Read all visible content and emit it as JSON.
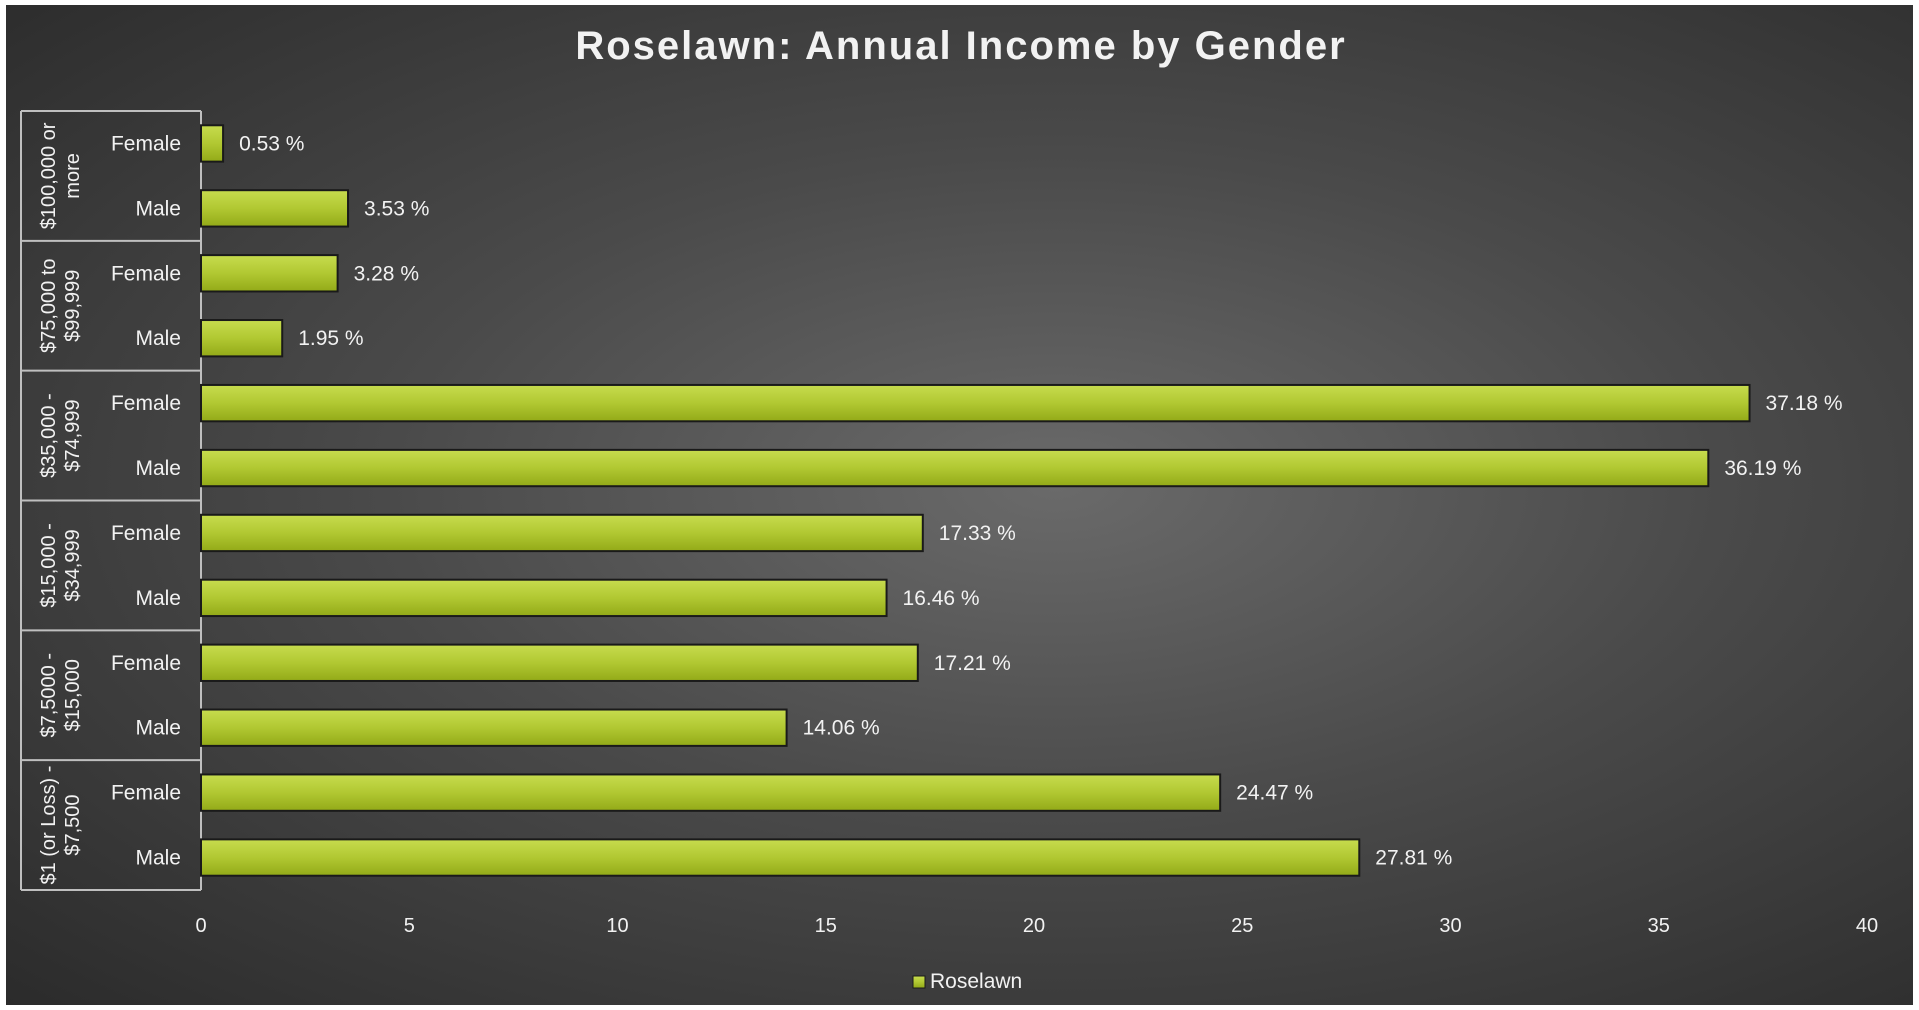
{
  "chart_data": {
    "type": "bar",
    "orientation": "horizontal",
    "title": "Roselawn: Annual Income by Gender",
    "groups": [
      {
        "label": "$100,000 or more",
        "lines": [
          "$100,000 or",
          "more"
        ],
        "bars": [
          {
            "category": "Female",
            "value": 0.53,
            "label": "0.53 %"
          },
          {
            "category": "Male",
            "value": 3.53,
            "label": "3.53 %"
          }
        ]
      },
      {
        "label": "$75,000 to $99,999",
        "lines": [
          "$75,000 to",
          "$99,999"
        ],
        "bars": [
          {
            "category": "Female",
            "value": 3.28,
            "label": "3.28 %"
          },
          {
            "category": "Male",
            "value": 1.95,
            "label": "1.95 %"
          }
        ]
      },
      {
        "label": "$35,000 - $74,999",
        "lines": [
          "$35,000 -",
          "$74,999"
        ],
        "bars": [
          {
            "category": "Female",
            "value": 37.18,
            "label": "37.18 %"
          },
          {
            "category": "Male",
            "value": 36.19,
            "label": "36.19 %"
          }
        ]
      },
      {
        "label": "$15,000 - $34,999",
        "lines": [
          "$15,000 -",
          "$34,999"
        ],
        "bars": [
          {
            "category": "Female",
            "value": 17.33,
            "label": "17.33 %"
          },
          {
            "category": "Male",
            "value": 16.46,
            "label": "16.46 %"
          }
        ]
      },
      {
        "label": "$7,5000 - $15,000",
        "lines": [
          "$7,5000 -",
          "$15,000"
        ],
        "bars": [
          {
            "category": "Female",
            "value": 17.21,
            "label": "17.21 %"
          },
          {
            "category": "Male",
            "value": 14.06,
            "label": "14.06 %"
          }
        ]
      },
      {
        "label": "$1 (or Loss) - $7,500",
        "lines": [
          "$1 (or Loss) -",
          "$7,500"
        ],
        "bars": [
          {
            "category": "Female",
            "value": 24.47,
            "label": "24.47 %"
          },
          {
            "category": "Male",
            "value": 27.81,
            "label": "27.81 %"
          }
        ]
      }
    ],
    "series": [
      {
        "name": "Roselawn"
      }
    ],
    "xlim": [
      0,
      40
    ],
    "xticks": [
      "0",
      "5",
      "10",
      "15",
      "20",
      "25",
      "30",
      "35",
      "40"
    ],
    "grid": false,
    "legend": "bottom",
    "colors": {
      "bar_light": "#b5cc3a",
      "bar_dark": "#9ab21c",
      "background_center": "#6a6a6a",
      "background_edge": "#2b2b2b",
      "text": "#f2f2f2"
    }
  }
}
